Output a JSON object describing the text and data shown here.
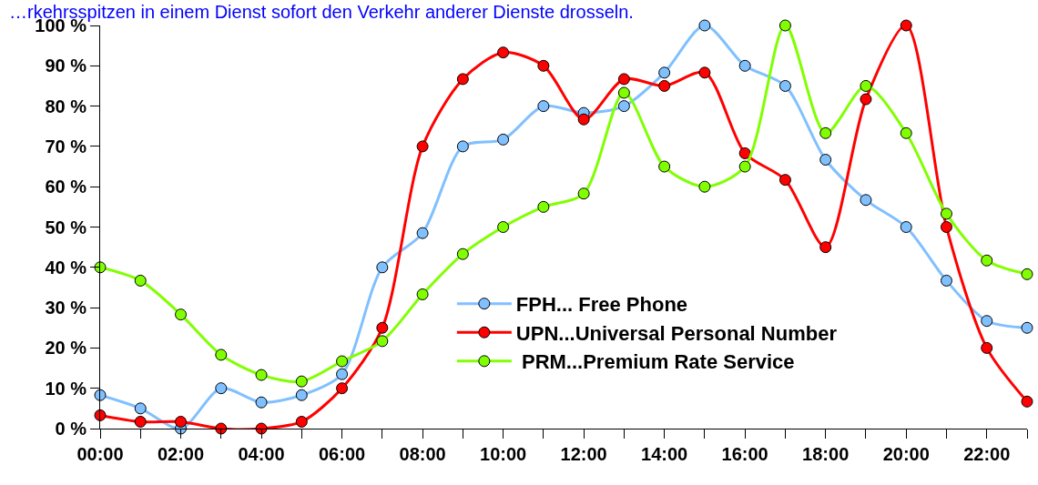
{
  "chart_data": {
    "type": "line",
    "annotations": [
      "…rkehrsspitzen in einem Dienst sofort den Verkehr anderer Dienste drosseln."
    ],
    "x": [
      0,
      1,
      2,
      3,
      4,
      5,
      6,
      7,
      8,
      9,
      10,
      11,
      12,
      13,
      14,
      15,
      16,
      17,
      18,
      19,
      20,
      21,
      22,
      23
    ],
    "series": [
      {
        "name": "FPH... Free Phone",
        "color": "#80c0ff",
        "values": [
          8.3,
          5,
          0,
          10,
          6.5,
          8.3,
          13.5,
          40,
          48.5,
          70,
          71.7,
          80,
          78.3,
          80,
          88.3,
          100,
          90,
          85,
          66.7,
          56.7,
          50,
          36.7,
          26.7,
          25
        ]
      },
      {
        "name": "UPN...Universal Personal Number",
        "color": "#ff0000",
        "values": [
          3.3,
          1.7,
          1.7,
          0,
          0,
          1.7,
          10,
          25,
          70,
          86.7,
          93.3,
          90,
          76.7,
          86.7,
          85,
          88.3,
          68.3,
          61.7,
          45,
          81.7,
          100,
          50,
          20,
          6.7
        ]
      },
      {
        "name": " PRM...Premium Rate Service",
        "color": "#80ff00",
        "values": [
          40,
          36.7,
          28.3,
          18.3,
          13.3,
          11.7,
          16.7,
          21.7,
          33.3,
          43.3,
          50,
          55,
          58.3,
          83.3,
          65,
          60,
          65,
          100,
          73.3,
          85,
          73.3,
          53.3,
          41.7,
          38.3
        ]
      }
    ],
    "xlim": [
      0,
      23
    ],
    "xticks": [
      {
        "value": 0,
        "label": "00:00"
      },
      {
        "value": 1,
        "label": null
      },
      {
        "value": 2,
        "label": "02:00"
      },
      {
        "value": 3,
        "label": null
      },
      {
        "value": 4,
        "label": "04:00"
      },
      {
        "value": 5,
        "label": null
      },
      {
        "value": 6,
        "label": "06:00"
      },
      {
        "value": 7,
        "label": null
      },
      {
        "value": 8,
        "label": "08:00"
      },
      {
        "value": 9,
        "label": null
      },
      {
        "value": 10,
        "label": "10:00"
      },
      {
        "value": 11,
        "label": null
      },
      {
        "value": 12,
        "label": "12:00"
      },
      {
        "value": 13,
        "label": null
      },
      {
        "value": 14,
        "label": "14:00"
      },
      {
        "value": 15,
        "label": null
      },
      {
        "value": 16,
        "label": "16:00"
      },
      {
        "value": 17,
        "label": null
      },
      {
        "value": 18,
        "label": "18:00"
      },
      {
        "value": 19,
        "label": null
      },
      {
        "value": 20,
        "label": "20:00"
      },
      {
        "value": 21,
        "label": null
      },
      {
        "value": 22,
        "label": "22:00"
      },
      {
        "value": 23,
        "label": null
      }
    ],
    "ylim": [
      0,
      100
    ],
    "yticks": [
      {
        "value": 0,
        "label": "0 %"
      },
      {
        "value": 10,
        "label": "10 %"
      },
      {
        "value": 20,
        "label": "20 %"
      },
      {
        "value": 30,
        "label": "30 %"
      },
      {
        "value": 40,
        "label": "40 %"
      },
      {
        "value": 50,
        "label": "50 %"
      },
      {
        "value": 60,
        "label": "60 %"
      },
      {
        "value": 70,
        "label": "70 %"
      },
      {
        "value": 80,
        "label": "80 %"
      },
      {
        "value": 90,
        "label": "90 %"
      },
      {
        "value": 100,
        "label": "100 %"
      }
    ],
    "legend": "bottom right",
    "marker": "circle",
    "line_style": "solid"
  }
}
